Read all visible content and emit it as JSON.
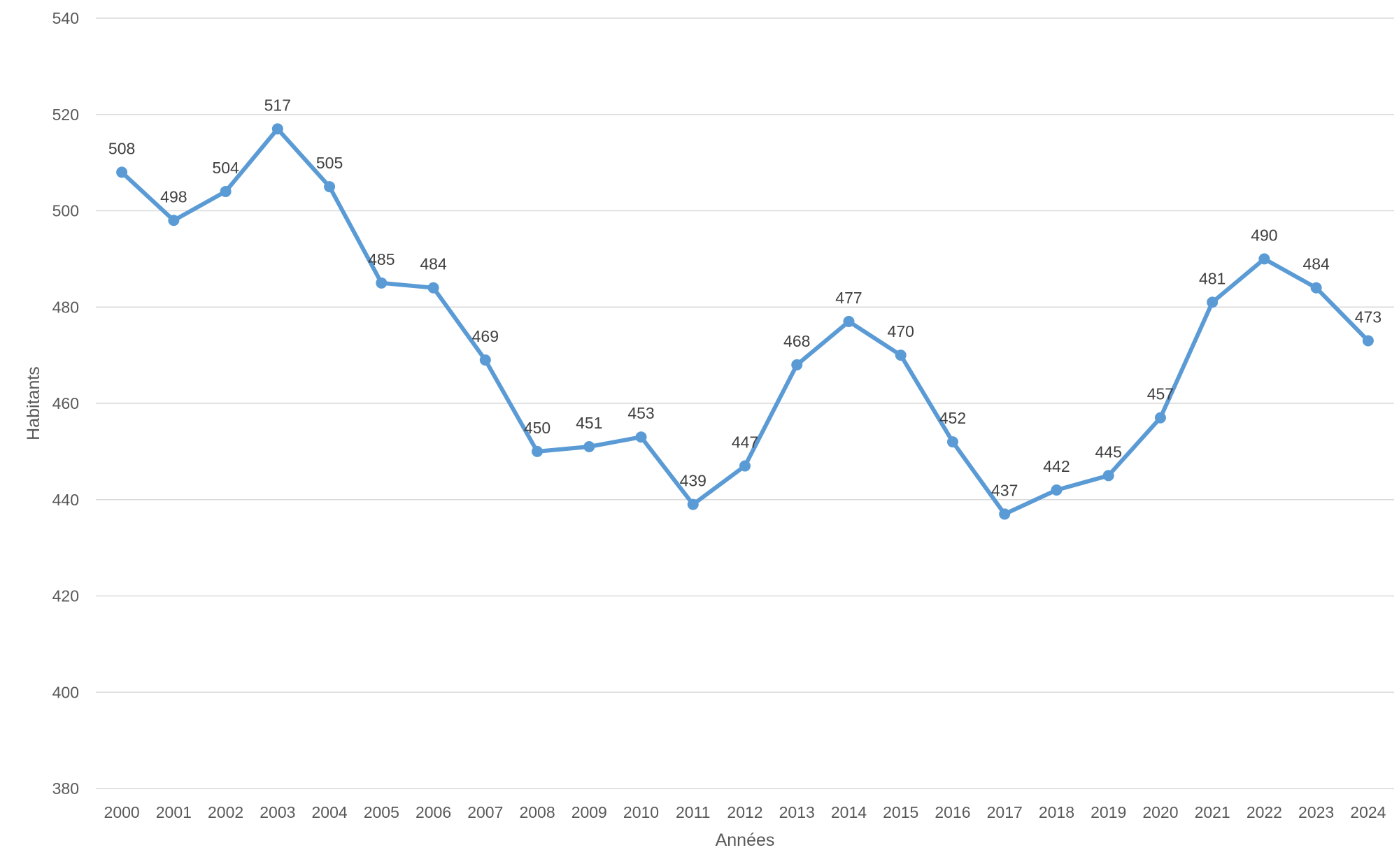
{
  "chart_data": {
    "type": "line",
    "title": "",
    "xlabel": "Années",
    "ylabel": "Habitants",
    "ylim": [
      380,
      540
    ],
    "yticks": [
      380,
      400,
      420,
      440,
      460,
      480,
      500,
      520,
      540
    ],
    "grid": true,
    "legend": "none",
    "categories": [
      "2000",
      "2001",
      "2002",
      "2003",
      "2004",
      "2005",
      "2006",
      "2007",
      "2008",
      "2009",
      "2010",
      "2011",
      "2012",
      "2013",
      "2014",
      "2015",
      "2016",
      "2017",
      "2018",
      "2019",
      "2020",
      "2021",
      "2022",
      "2023",
      "2024"
    ],
    "series": [
      {
        "values": [
          508,
          498,
          504,
          517,
          505,
          485,
          484,
          469,
          450,
          451,
          453,
          439,
          447,
          468,
          477,
          470,
          452,
          437,
          442,
          445,
          457,
          481,
          490,
          484,
          473
        ],
        "color": "#5b9bd5"
      }
    ],
    "colors": {
      "line": "#5b9bd5",
      "grid": "#d9d9d9",
      "text": "#595959",
      "label": "#404040"
    }
  }
}
